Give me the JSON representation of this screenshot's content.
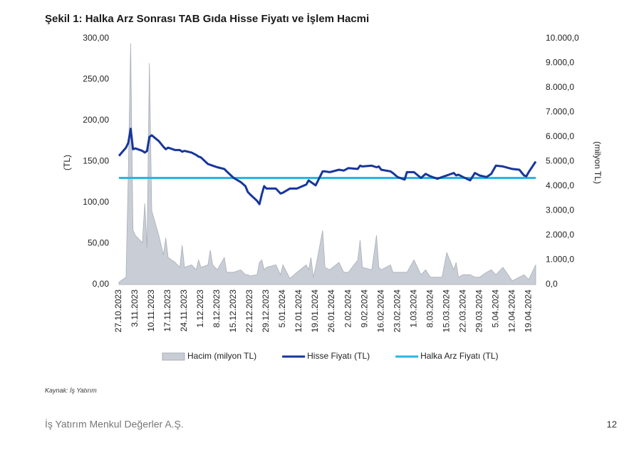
{
  "chart_data": {
    "type": "combo",
    "title": "Şekil 1: Halka Arz Sonrası TAB Gıda Hisse Fiyatı ve İşlem Hacmi",
    "y_label": "(TL)",
    "y2_label": "(milyon TL)",
    "x": [
      "27.10.2023",
      "30.10.2023",
      "31.10.2023",
      "1.11.2023",
      "2.11.2023",
      "3.11.2023",
      "6.11.2023",
      "7.11.2023",
      "8.11.2023",
      "9.11.2023",
      "10.11.2023",
      "13.11.2023",
      "15.11.2023",
      "16.11.2023",
      "17.11.2023",
      "20.11.2023",
      "22.11.2023",
      "23.11.2023",
      "24.11.2023",
      "27.11.2023",
      "29.11.2023",
      "30.11.2023",
      "1.12.2023",
      "4.12.2023",
      "5.12.2023",
      "6.12.2023",
      "8.12.2023",
      "11.12.2023",
      "12.12.2023",
      "15.12.2023",
      "18.12.2023",
      "20.12.2023",
      "21.12.2023",
      "22.12.2023",
      "25.12.2023",
      "26.12.2023",
      "27.12.2023",
      "28.12.2023",
      "29.12.2023",
      "2.01.2024",
      "4.01.2024",
      "5.01.2024",
      "8.01.2024",
      "11.01.2024",
      "15.01.2024",
      "16.01.2024",
      "17.01.2024",
      "18.01.2024",
      "19.01.2024",
      "22.01.2024",
      "23.01.2024",
      "25.01.2024",
      "29.01.2024",
      "31.01.2024",
      "2.02.2024",
      "6.02.2024",
      "7.02.2024",
      "8.02.2024",
      "12.02.2024",
      "14.02.2024",
      "15.02.2024",
      "16.02.2024",
      "20.02.2024",
      "21.02.2024",
      "23.02.2024",
      "26.02.2024",
      "27.02.2024",
      "1.03.2024",
      "4.03.2024",
      "6.03.2024",
      "8.03.2024",
      "11.03.2024",
      "13.03.2024",
      "15.03.2024",
      "18.03.2024",
      "19.03.2024",
      "20.03.2024",
      "22.03.2024",
      "25.03.2024",
      "27.03.2024",
      "29.03.2024",
      "1.04.2024",
      "3.04.2024",
      "5.04.2024",
      "8.04.2024",
      "12.04.2024",
      "15.04.2024",
      "17.04.2024",
      "18.04.2024",
      "19.04.2024",
      "22.04.2024"
    ],
    "series": [
      {
        "name": "Hacim (milyon TL)",
        "type": "area",
        "axis": "y2",
        "color": "#c9cdd5",
        "values": [
          100,
          300,
          4500,
          9800,
          2200,
          2000,
          1700,
          3300,
          1500,
          9000,
          3000,
          2000,
          1200,
          1900,
          1100,
          900,
          700,
          1600,
          700,
          800,
          600,
          1000,
          700,
          800,
          1400,
          800,
          600,
          1100,
          500,
          500,
          600,
          400,
          400,
          350,
          400,
          900,
          1000,
          600,
          700,
          800,
          400,
          800,
          250,
          500,
          800,
          600,
          1100,
          300,
          700,
          2200,
          700,
          600,
          900,
          500,
          500,
          1000,
          1800,
          700,
          600,
          2000,
          700,
          600,
          800,
          500,
          500,
          500,
          500,
          1000,
          400,
          600,
          300,
          300,
          300,
          1300,
          600,
          900,
          300,
          400,
          400,
          300,
          300,
          500,
          600,
          400,
          700,
          150,
          300,
          400,
          300,
          200,
          800
        ]
      },
      {
        "name": "Hisse Fiyatı (TL)",
        "type": "line",
        "color": "#17369a",
        "values": [
          157,
          167,
          173,
          190,
          165,
          166,
          163,
          161,
          163,
          180,
          182,
          175,
          168,
          165,
          167,
          164,
          164,
          162,
          163,
          161,
          158,
          156,
          155,
          147,
          146,
          145,
          143,
          141,
          138,
          130,
          125,
          120,
          113,
          110,
          102,
          98,
          110,
          120,
          117,
          117,
          111,
          112,
          117,
          117,
          122,
          127,
          125,
          123,
          121,
          138,
          138,
          137,
          140,
          139,
          142,
          141,
          145,
          144,
          145,
          143,
          144,
          140,
          138,
          136,
          131,
          128,
          137,
          137,
          130,
          135,
          132,
          129,
          131,
          133,
          136,
          133,
          134,
          131,
          127,
          136,
          133,
          131,
          135,
          145,
          144,
          141,
          140,
          133,
          132,
          137,
          150
        ]
      }
    ],
    "reference_line": {
      "name": "Halka Arz Fiyatı (TL)",
      "color": "#2ab4e6",
      "value": 130
    },
    "xlim": [
      "27.10.2023",
      "22.04.2024"
    ],
    "xticks": [
      "27.10.2023",
      "3.11.2023",
      "10.11.2023",
      "17.11.2023",
      "24.11.2023",
      "1.12.2023",
      "8.12.2023",
      "15.12.2023",
      "22.12.2023",
      "29.12.2023",
      "5.01.2024",
      "12.01.2024",
      "19.01.2024",
      "26.01.2024",
      "2.02.2024",
      "9.02.2024",
      "16.02.2024",
      "23.02.2024",
      "1.03.2024",
      "8.03.2024",
      "15.03.2024",
      "22.03.2024",
      "29.03.2024",
      "5.04.2024",
      "12.04.2024",
      "19.04.2024"
    ],
    "ylim": [
      0,
      300
    ],
    "yticks": [
      {
        "value": 0,
        "label": "0,00"
      },
      {
        "value": 50,
        "label": "50,00"
      },
      {
        "value": 100,
        "label": "100,00"
      },
      {
        "value": 150,
        "label": "150,00"
      },
      {
        "value": 200,
        "label": "200,00"
      },
      {
        "value": 250,
        "label": "250,00"
      },
      {
        "value": 300,
        "label": "300,00"
      }
    ],
    "y2lim": [
      0,
      10000
    ],
    "y2ticks": [
      {
        "value": 0,
        "label": "0,0"
      },
      {
        "value": 1000,
        "label": "1.000,0"
      },
      {
        "value": 2000,
        "label": "2.000,0"
      },
      {
        "value": 3000,
        "label": "3.000,0"
      },
      {
        "value": 4000,
        "label": "4.000,0"
      },
      {
        "value": 5000,
        "label": "5.000,0"
      },
      {
        "value": 6000,
        "label": "6.000,0"
      },
      {
        "value": 7000,
        "label": "7.000,0"
      },
      {
        "value": 8000,
        "label": "8.000,0"
      },
      {
        "value": 9000,
        "label": "9.000,0"
      },
      {
        "value": 10000,
        "label": "10.000,0"
      }
    ],
    "legend": "bottom",
    "grid": false
  },
  "source": "Kaynak: İş Yatırım",
  "footer": {
    "company": "İş Yatırım Menkul Değerler A.Ş.",
    "page": "12"
  }
}
